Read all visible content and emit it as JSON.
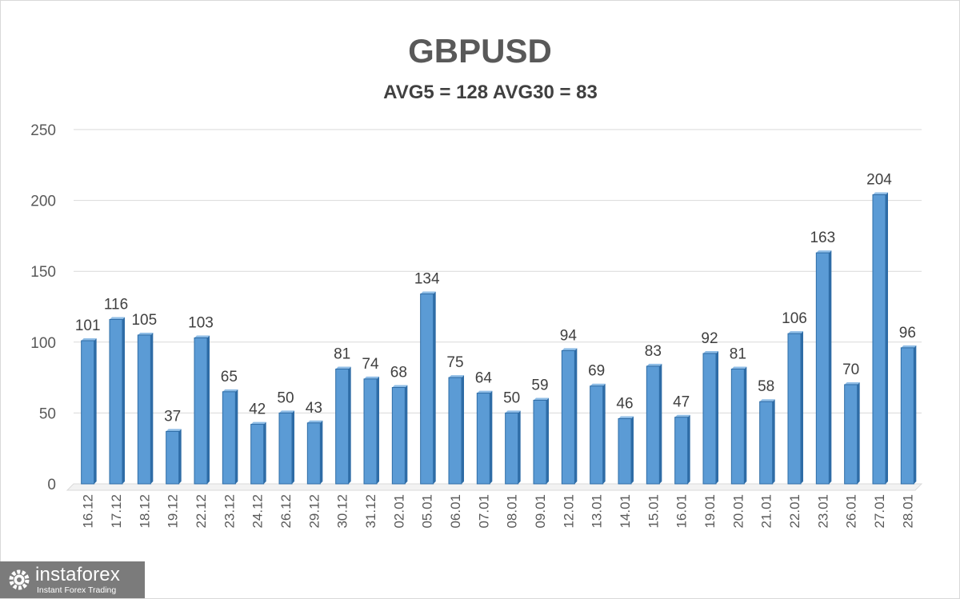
{
  "chart_data": {
    "type": "bar",
    "title": "GBPUSD",
    "subtitle": "AVG5 = 128 AVG30 = 83",
    "categories": [
      "16.12",
      "17.12",
      "18.12",
      "19.12",
      "22.12",
      "23.12",
      "24.12",
      "26.12",
      "29.12",
      "30.12",
      "31.12",
      "02.01",
      "05.01",
      "06.01",
      "07.01",
      "08.01",
      "09.01",
      "12.01",
      "13.01",
      "14.01",
      "15.01",
      "16.01",
      "19.01",
      "20.01",
      "21.01",
      "22.01",
      "23.01",
      "26.01",
      "27.01",
      "28.01"
    ],
    "values": [
      101,
      116,
      105,
      37,
      103,
      65,
      42,
      50,
      43,
      81,
      74,
      68,
      134,
      75,
      64,
      50,
      59,
      94,
      69,
      46,
      83,
      47,
      92,
      81,
      58,
      106,
      163,
      70,
      204,
      96
    ],
    "ylim": [
      0,
      250
    ],
    "yticks": [
      0,
      50,
      100,
      150,
      200,
      250
    ],
    "grid": true,
    "bar_color": "#5b9bd5",
    "bar_dark_color": "#2e6ca6"
  },
  "logo": {
    "name": "instaforex",
    "tagline": "Instant Forex Trading"
  }
}
